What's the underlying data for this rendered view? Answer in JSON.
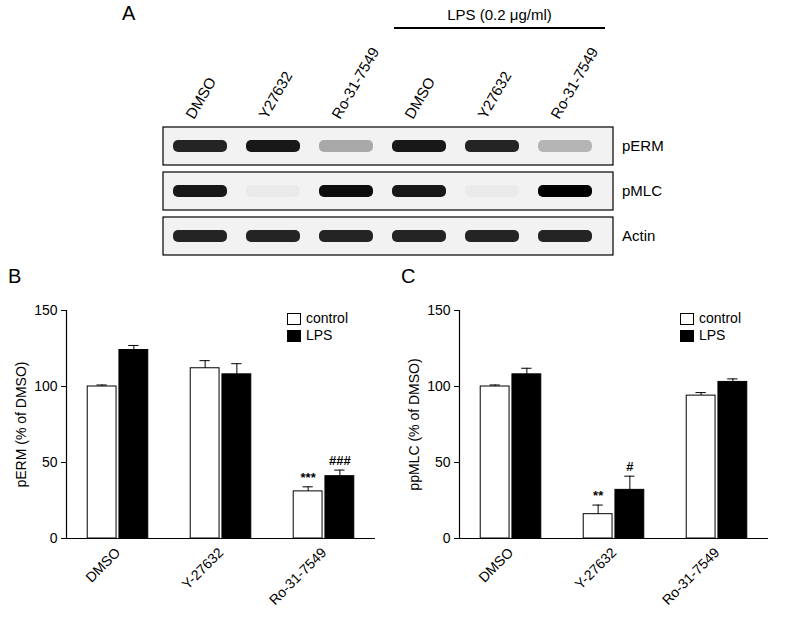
{
  "chart_data": [
    {
      "type": "bar",
      "title": "B",
      "y_label": "pERM (% of DMSO)",
      "categories": [
        "DMSO",
        "Y-27632",
        "Ro-31-7549"
      ],
      "ylim": [
        0,
        150
      ],
      "yticks": [
        0,
        50,
        100,
        150
      ],
      "legend": "top-right",
      "series": [
        {
          "name": "control",
          "color": "#ffffff",
          "values": [
            100,
            112,
            31
          ],
          "errors": [
            1,
            5,
            3
          ]
        },
        {
          "name": "LPS",
          "color": "#000000",
          "values": [
            124,
            108,
            41
          ],
          "errors": [
            3,
            7,
            4
          ]
        }
      ],
      "annotations": [
        {
          "category": "Ro-31-7549",
          "series": "control",
          "text": "***"
        },
        {
          "category": "Ro-31-7549",
          "series": "LPS",
          "text": "###"
        }
      ]
    },
    {
      "type": "bar",
      "title": "C",
      "y_label": "ppMLC (% of DMSO)",
      "categories": [
        "DMSO",
        "Y-27632",
        "Ro-31-7549"
      ],
      "ylim": [
        0,
        150
      ],
      "yticks": [
        0,
        50,
        100,
        150
      ],
      "legend": "top-right",
      "series": [
        {
          "name": "control",
          "color": "#ffffff",
          "values": [
            100,
            16,
            94
          ],
          "errors": [
            1,
            6,
            2
          ]
        },
        {
          "name": "LPS",
          "color": "#000000",
          "values": [
            108,
            32,
            103
          ],
          "errors": [
            4,
            9,
            2
          ]
        }
      ],
      "annotations": [
        {
          "category": "Y-27632",
          "series": "control",
          "text": "**"
        },
        {
          "category": "Y-27632",
          "series": "LPS",
          "text": "#"
        }
      ]
    }
  ],
  "blot": {
    "title": "A",
    "treatment": "LPS (0.2 μg/ml)",
    "treated_lanes": [
      3,
      4,
      5
    ],
    "lanes": [
      "DMSO",
      "Y27632",
      "Ro-31-7549",
      "DMSO",
      "Y27632",
      "Ro-31-7549"
    ],
    "rows": [
      {
        "label": "pERM",
        "intensity": [
          0.85,
          0.9,
          0.3,
          0.9,
          0.85,
          0.25
        ]
      },
      {
        "label": "pMLC",
        "intensity": [
          0.9,
          0.03,
          0.95,
          0.9,
          0.03,
          1.0
        ]
      },
      {
        "label": "Actin",
        "intensity": [
          0.85,
          0.85,
          0.85,
          0.85,
          0.85,
          0.85
        ]
      }
    ]
  }
}
